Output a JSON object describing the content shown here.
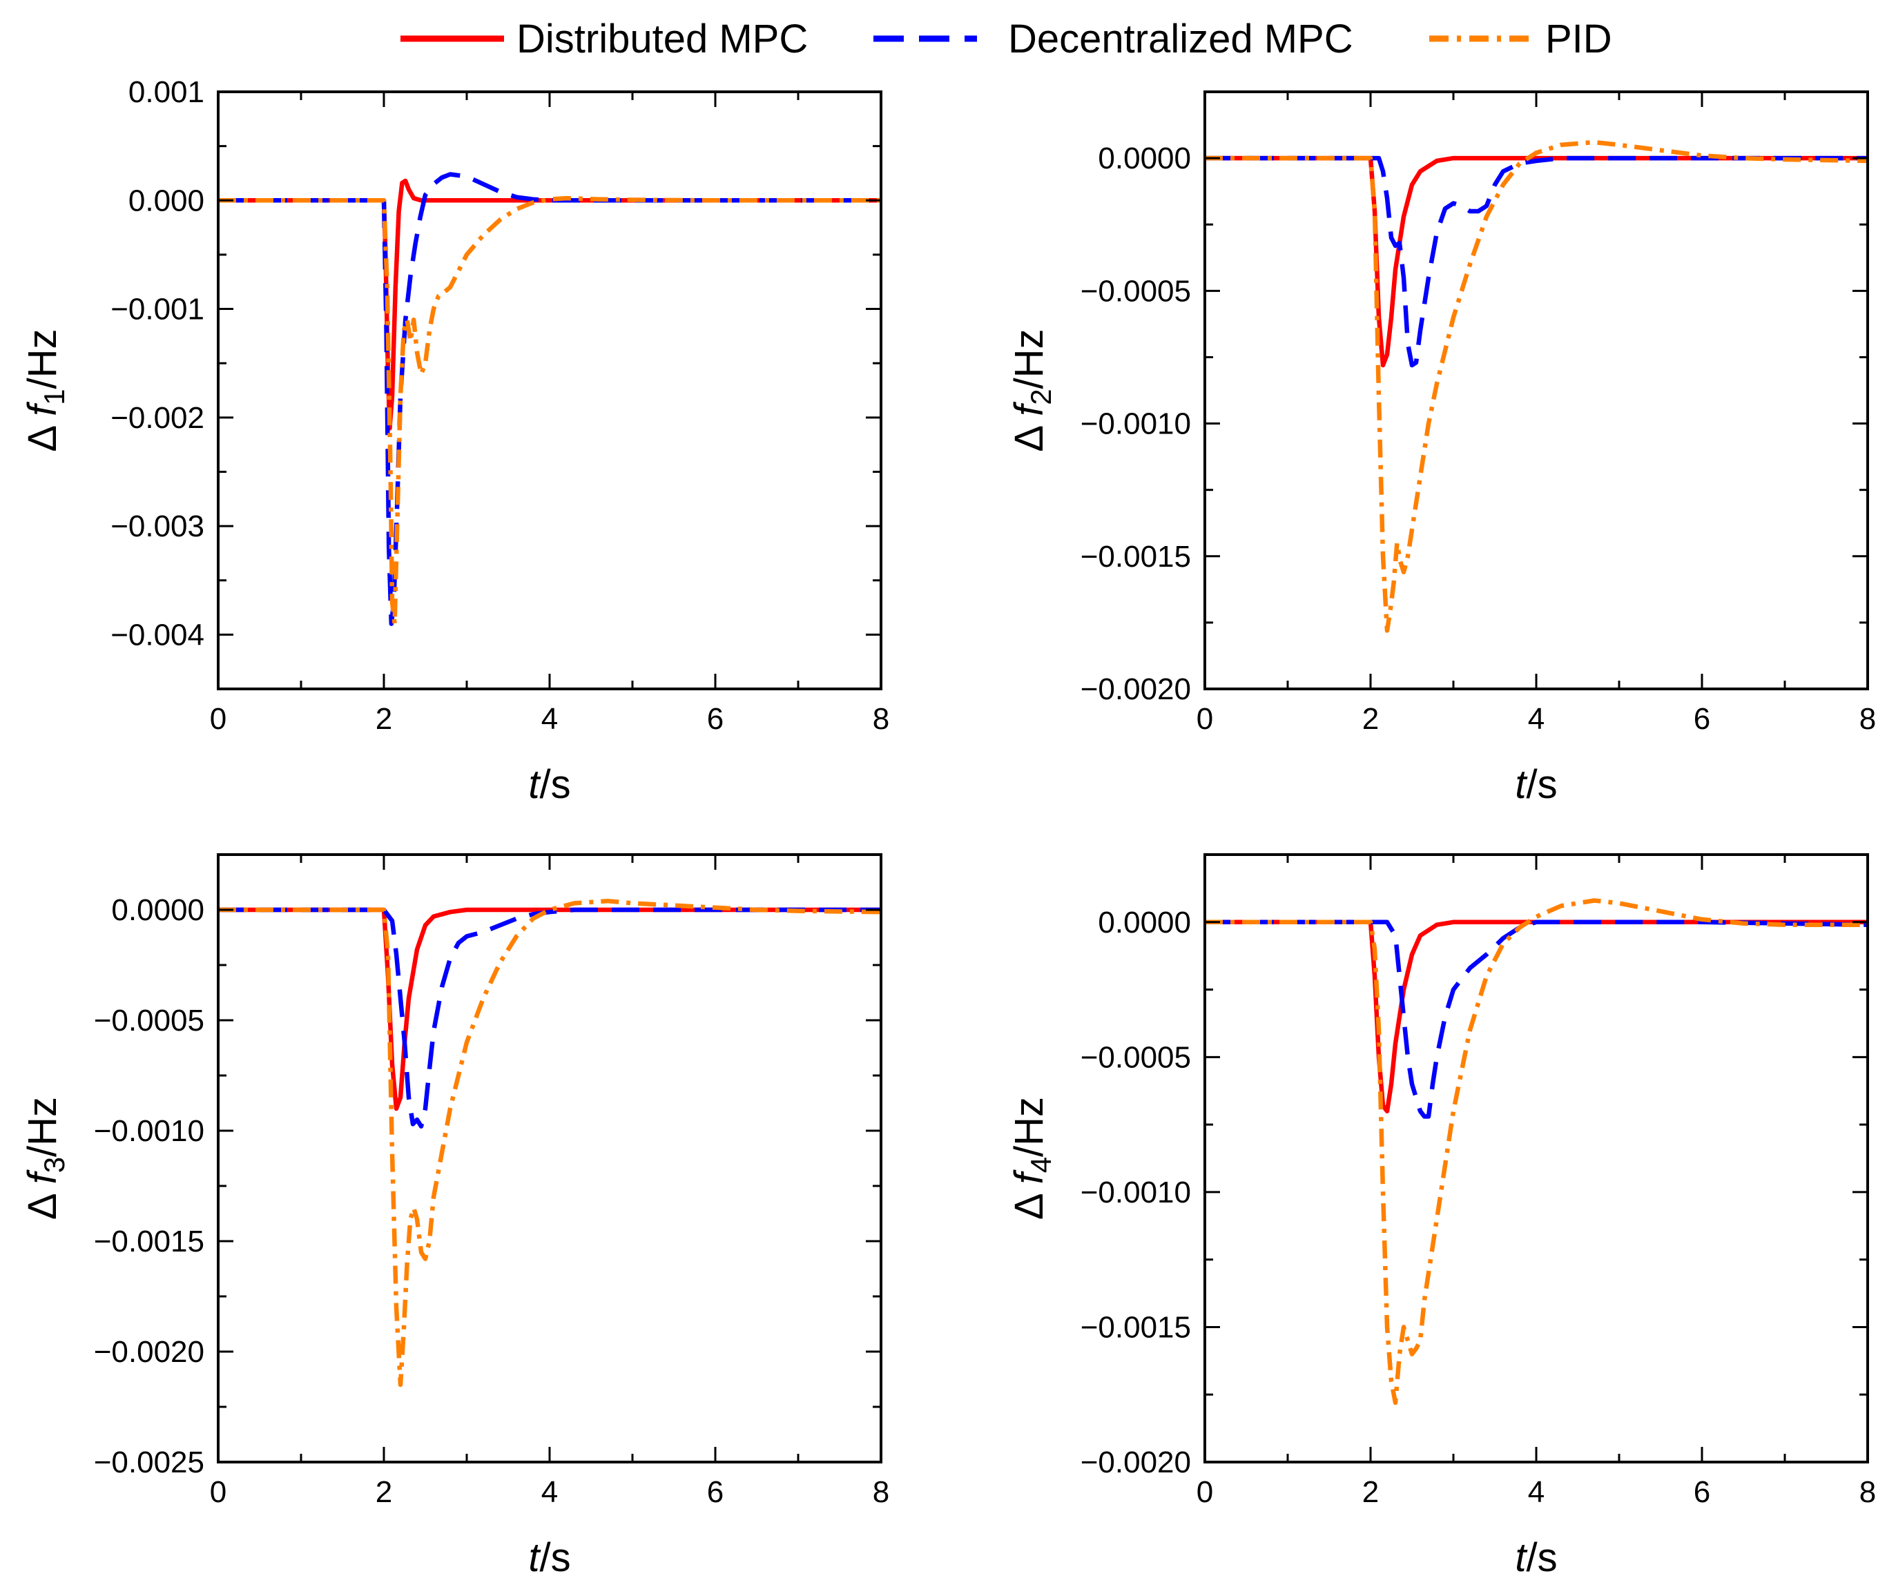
{
  "legend": {
    "entries": [
      {
        "label": "Distributed MPC",
        "color": "#ff0000",
        "dash": "solid"
      },
      {
        "label": "Decentralized MPC",
        "color": "#0000ff",
        "dash": "dashed"
      },
      {
        "label": "PID",
        "color": "#ff8000",
        "dash": "dashdot"
      }
    ]
  },
  "chart_data": [
    {
      "type": "line",
      "title": "",
      "xlabel": "t/s",
      "ylabel_prefix": "Δ",
      "ylabel_var": "f",
      "ylabel_sub": "1",
      "ylabel_suffix": "/Hz",
      "xlim": [
        0,
        8
      ],
      "ylim": [
        -0.0045,
        0.001
      ],
      "xticks": [
        0,
        2,
        4,
        6,
        8
      ],
      "xtick_labels": [
        "0",
        "2",
        "4",
        "6",
        "8"
      ],
      "yticks": [
        0.001,
        0.0,
        -0.001,
        -0.002,
        -0.003,
        -0.004
      ],
      "ytick_labels": [
        "0.001",
        "0.000",
        "−0.001",
        "−0.002",
        "−0.003",
        "−0.004"
      ],
      "series": [
        {
          "name": "Distributed MPC",
          "x": [
            0,
            2.0,
            2.02,
            2.05,
            2.07,
            2.1,
            2.14,
            2.18,
            2.22,
            2.26,
            2.3,
            2.36,
            2.45,
            2.6,
            8
          ],
          "y": [
            0,
            0,
            -0.0005,
            -0.0016,
            -0.0021,
            -0.0018,
            -0.0008,
            -0.0001,
            0.00016,
            0.00018,
            0.0001,
            2e-05,
            0,
            0,
            0
          ]
        },
        {
          "name": "Decentralized MPC",
          "x": [
            0,
            2.0,
            2.03,
            2.06,
            2.09,
            2.12,
            2.16,
            2.2,
            2.26,
            2.32,
            2.38,
            2.44,
            2.5,
            2.6,
            2.7,
            2.8,
            3.0,
            3.2,
            3.4,
            3.6,
            3.8,
            4.0,
            4.3,
            8
          ],
          "y": [
            0,
            0,
            -0.0012,
            -0.0032,
            -0.0039,
            -0.0037,
            -0.0028,
            -0.0018,
            -0.0011,
            -0.0007,
            -0.0004,
            -0.00015,
            5e-05,
            0.00015,
            0.00021,
            0.00024,
            0.00022,
            0.00015,
            8e-05,
            3e-05,
            1e-05,
            0,
            0,
            0
          ]
        },
        {
          "name": "PID",
          "x": [
            0,
            2.0,
            2.04,
            2.08,
            2.1,
            2.13,
            2.16,
            2.2,
            2.24,
            2.28,
            2.32,
            2.36,
            2.4,
            2.45,
            2.5,
            2.55,
            2.6,
            2.66,
            2.72,
            2.8,
            2.9,
            3.0,
            3.2,
            3.4,
            3.6,
            3.8,
            4.0,
            4.2,
            4.6,
            5.0,
            6.0,
            8
          ],
          "y": [
            0,
            0,
            -0.0008,
            -0.0025,
            -0.0037,
            -0.0039,
            -0.003,
            -0.0018,
            -0.0012,
            -0.0011,
            -0.0013,
            -0.0011,
            -0.0014,
            -0.0016,
            -0.0015,
            -0.0012,
            -0.001,
            -0.00088,
            -0.00085,
            -0.0008,
            -0.00065,
            -0.0005,
            -0.00032,
            -0.00018,
            -8e-05,
            -2e-05,
            1e-05,
            2e-05,
            1e-05,
            5e-06,
            0,
            0
          ]
        }
      ]
    },
    {
      "type": "line",
      "title": "",
      "xlabel": "t/s",
      "ylabel_prefix": "Δ",
      "ylabel_var": "f",
      "ylabel_sub": "2",
      "ylabel_suffix": "/Hz",
      "xlim": [
        0,
        8
      ],
      "ylim": [
        -0.002,
        0.00025
      ],
      "xticks": [
        0,
        2,
        4,
        6,
        8
      ],
      "xtick_labels": [
        "0",
        "2",
        "4",
        "6",
        "8"
      ],
      "yticks": [
        0.0,
        -0.0005,
        -0.001,
        -0.0015,
        -0.002
      ],
      "ytick_labels": [
        "0.0000",
        "−0.0005",
        "−0.0010",
        "−0.0015",
        "−0.0020"
      ],
      "series": [
        {
          "name": "Distributed MPC",
          "x": [
            0,
            2.0,
            2.05,
            2.1,
            2.15,
            2.2,
            2.25,
            2.3,
            2.4,
            2.5,
            2.6,
            2.8,
            3.0,
            3.3,
            8
          ],
          "y": [
            0,
            0,
            -0.0002,
            -0.0006,
            -0.00078,
            -0.00074,
            -0.0006,
            -0.00042,
            -0.00022,
            -0.0001,
            -5e-05,
            -1e-05,
            0,
            0,
            0
          ]
        },
        {
          "name": "Decentralized MPC",
          "x": [
            0,
            2.0,
            2.1,
            2.15,
            2.2,
            2.25,
            2.3,
            2.35,
            2.4,
            2.45,
            2.5,
            2.55,
            2.6,
            2.7,
            2.8,
            2.9,
            3.0,
            3.1,
            3.2,
            3.3,
            3.4,
            3.5,
            3.6,
            3.8,
            4.0,
            4.3,
            8
          ],
          "y": [
            0,
            0,
            0,
            -5e-05,
            -0.00015,
            -0.0003,
            -0.00033,
            -0.00032,
            -0.00045,
            -0.0007,
            -0.00078,
            -0.00077,
            -0.00065,
            -0.00045,
            -0.00028,
            -0.00019,
            -0.00017,
            -0.00018,
            -0.0002,
            -0.0002,
            -0.00018,
            -0.0001,
            -5e-05,
            -2e-05,
            -1e-05,
            0,
            0
          ]
        },
        {
          "name": "PID",
          "x": [
            0,
            2.0,
            2.05,
            2.1,
            2.15,
            2.2,
            2.24,
            2.28,
            2.32,
            2.36,
            2.4,
            2.45,
            2.5,
            2.55,
            2.6,
            2.7,
            2.8,
            3.0,
            3.2,
            3.4,
            3.6,
            3.8,
            4.0,
            4.3,
            4.7,
            5.0,
            5.5,
            6.0,
            6.5,
            7.0,
            8
          ],
          "y": [
            0,
            0,
            -0.0002,
            -0.0009,
            -0.0015,
            -0.00178,
            -0.0017,
            -0.0016,
            -0.00145,
            -0.00152,
            -0.00156,
            -0.0015,
            -0.0014,
            -0.0013,
            -0.0012,
            -0.001,
            -0.00085,
            -0.0006,
            -0.0004,
            -0.00022,
            -0.0001,
            -2e-05,
            2e-05,
            5e-05,
            6e-05,
            5e-05,
            3e-05,
            1e-05,
            0,
            -5e-06,
            -1e-05
          ]
        }
      ]
    },
    {
      "type": "line",
      "title": "",
      "xlabel": "t/s",
      "ylabel_prefix": "Δ",
      "ylabel_var": "f",
      "ylabel_sub": "3",
      "ylabel_suffix": "/Hz",
      "xlim": [
        0,
        8
      ],
      "ylim": [
        -0.0025,
        0.00025
      ],
      "xticks": [
        0,
        2,
        4,
        6,
        8
      ],
      "xtick_labels": [
        "0",
        "2",
        "4",
        "6",
        "8"
      ],
      "yticks": [
        0.0,
        -0.0005,
        -0.001,
        -0.0015,
        -0.002,
        -0.0025
      ],
      "ytick_labels": [
        "0.0000",
        "−0.0005",
        "−0.0010",
        "−0.0015",
        "−0.0020",
        "−0.0025"
      ],
      "series": [
        {
          "name": "Distributed MPC",
          "x": [
            0,
            2.0,
            2.05,
            2.1,
            2.15,
            2.2,
            2.25,
            2.3,
            2.4,
            2.5,
            2.6,
            2.8,
            3.0,
            3.3,
            8
          ],
          "y": [
            0,
            0,
            -0.0003,
            -0.0007,
            -0.0009,
            -0.00085,
            -0.0006,
            -0.0004,
            -0.00018,
            -7e-05,
            -3e-05,
            -1e-05,
            0,
            0,
            0
          ]
        },
        {
          "name": "Decentralized MPC",
          "x": [
            0,
            2.0,
            2.1,
            2.15,
            2.2,
            2.25,
            2.3,
            2.35,
            2.4,
            2.45,
            2.5,
            2.55,
            2.6,
            2.7,
            2.8,
            2.9,
            3.0,
            3.2,
            3.4,
            3.6,
            3.8,
            4.0,
            4.3,
            8
          ],
          "y": [
            0,
            0,
            -5e-05,
            -0.0002,
            -0.0004,
            -0.0006,
            -0.00085,
            -0.00097,
            -0.00095,
            -0.00098,
            -0.0009,
            -0.00072,
            -0.00055,
            -0.00035,
            -0.00022,
            -0.00015,
            -0.00012,
            -0.0001,
            -7e-05,
            -4e-05,
            -2e-05,
            -1e-05,
            0,
            0
          ]
        },
        {
          "name": "PID",
          "x": [
            0,
            2.0,
            2.05,
            2.1,
            2.15,
            2.2,
            2.24,
            2.28,
            2.32,
            2.36,
            2.4,
            2.45,
            2.5,
            2.55,
            2.6,
            2.7,
            2.8,
            3.0,
            3.2,
            3.4,
            3.6,
            3.8,
            4.0,
            4.3,
            4.7,
            5.0,
            5.5,
            6.0,
            6.5,
            7.0,
            8
          ],
          "y": [
            0,
            0,
            -0.0002,
            -0.0011,
            -0.0018,
            -0.00215,
            -0.0019,
            -0.0016,
            -0.0014,
            -0.00135,
            -0.0014,
            -0.00155,
            -0.00158,
            -0.0015,
            -0.0013,
            -0.0011,
            -0.0009,
            -0.0006,
            -0.0004,
            -0.00024,
            -0.00012,
            -4e-05,
            0,
            3e-05,
            4e-05,
            3e-05,
            2e-05,
            1e-05,
            0,
            -5e-06,
            -1e-05
          ]
        }
      ]
    },
    {
      "type": "line",
      "title": "",
      "xlabel": "t/s",
      "ylabel_prefix": "Δ",
      "ylabel_var": "f",
      "ylabel_sub": "4",
      "ylabel_suffix": "/Hz",
      "xlim": [
        0,
        8
      ],
      "ylim": [
        -0.002,
        0.00025
      ],
      "xticks": [
        0,
        2,
        4,
        6,
        8
      ],
      "xtick_labels": [
        "0",
        "2",
        "4",
        "6",
        "8"
      ],
      "yticks": [
        0.0,
        -0.0005,
        -0.001,
        -0.0015,
        -0.002
      ],
      "ytick_labels": [
        "0.0000",
        "−0.0005",
        "−0.0010",
        "−0.0015",
        "−0.0020"
      ],
      "series": [
        {
          "name": "Distributed MPC",
          "x": [
            0,
            2.0,
            2.05,
            2.1,
            2.15,
            2.2,
            2.25,
            2.3,
            2.4,
            2.5,
            2.6,
            2.8,
            3.0,
            3.3,
            8
          ],
          "y": [
            0,
            0,
            -0.0002,
            -0.0005,
            -0.00068,
            -0.0007,
            -0.0006,
            -0.00045,
            -0.00025,
            -0.00012,
            -5e-05,
            -1e-05,
            0,
            0,
            0
          ]
        },
        {
          "name": "Decentralized MPC",
          "x": [
            0,
            2.0,
            2.2,
            2.3,
            2.35,
            2.4,
            2.45,
            2.5,
            2.55,
            2.6,
            2.65,
            2.7,
            2.75,
            2.8,
            2.9,
            3.0,
            3.2,
            3.4,
            3.6,
            3.8,
            4.0,
            4.3,
            5.0,
            6.0,
            7.0,
            8
          ],
          "y": [
            0,
            0,
            0,
            -5e-05,
            -0.0002,
            -0.00035,
            -0.0005,
            -0.0006,
            -0.00065,
            -0.0007,
            -0.00072,
            -0.00072,
            -0.0006,
            -0.0005,
            -0.00035,
            -0.00025,
            -0.00017,
            -0.00012,
            -6e-05,
            -2e-05,
            0,
            0,
            0,
            0,
            -5e-06,
            -1e-05
          ]
        },
        {
          "name": "PID",
          "x": [
            0,
            2.0,
            2.05,
            2.1,
            2.15,
            2.2,
            2.25,
            2.3,
            2.35,
            2.4,
            2.45,
            2.5,
            2.55,
            2.6,
            2.65,
            2.7,
            2.8,
            2.9,
            3.0,
            3.2,
            3.4,
            3.6,
            3.8,
            4.0,
            4.3,
            4.7,
            5.0,
            5.5,
            6.0,
            6.5,
            7.0,
            8
          ],
          "y": [
            0,
            0,
            -0.0001,
            -0.0004,
            -0.001,
            -0.0015,
            -0.0017,
            -0.00178,
            -0.0016,
            -0.0015,
            -0.00155,
            -0.0016,
            -0.00158,
            -0.00155,
            -0.0014,
            -0.0013,
            -0.0011,
            -0.0009,
            -0.0007,
            -0.0004,
            -0.0002,
            -8e-05,
            -2e-05,
            2e-05,
            6e-05,
            8e-05,
            7e-05,
            4e-05,
            1e-05,
            -5e-06,
            -1e-05,
            -1e-05
          ]
        }
      ]
    }
  ]
}
